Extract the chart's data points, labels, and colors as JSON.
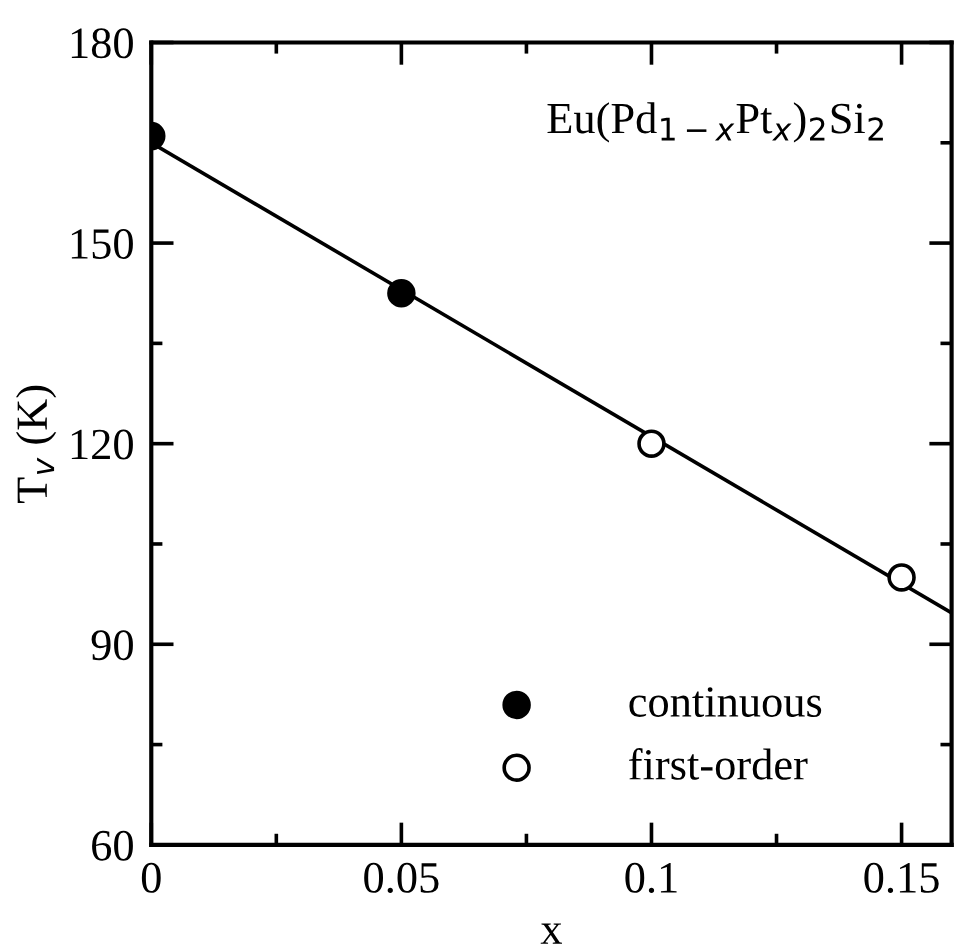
{
  "chart_data": {
    "type": "scatter",
    "xlabel": "x",
    "ylabel": "T$_{v}$ (K)",
    "annotations": [
      "Eu(Pd$_{1−x}$Pt$_{x}$)$_{2}$Si$_{2}$"
    ],
    "series": [
      {
        "name": "continuous",
        "color": "#000000",
        "x": [
          0,
          0.05
        ],
        "values": [
          166,
          142.5
        ],
        "marker": "circle"
      },
      {
        "name": "first-order",
        "color": "#ffffff",
        "x": [
          0.1,
          0.15
        ],
        "values": [
          120,
          100
        ],
        "marker": "circle"
      },
      {
        "type": "line",
        "color": "#000000",
        "x": [
          0,
          0.16
        ],
        "values": [
          165,
          94.7
        ],
        "marker": "none",
        "line_style": "solid"
      }
    ],
    "xlim": [
      0,
      0.16
    ],
    "ylim": [
      60,
      180
    ],
    "xticks": [
      0,
      0.05,
      {
        "value": 0.1,
        "label": "0.1"
      },
      0.15
    ],
    "yticks": [
      60,
      90,
      120,
      150,
      180
    ],
    "legend": "bottom",
    "grid": false
  }
}
